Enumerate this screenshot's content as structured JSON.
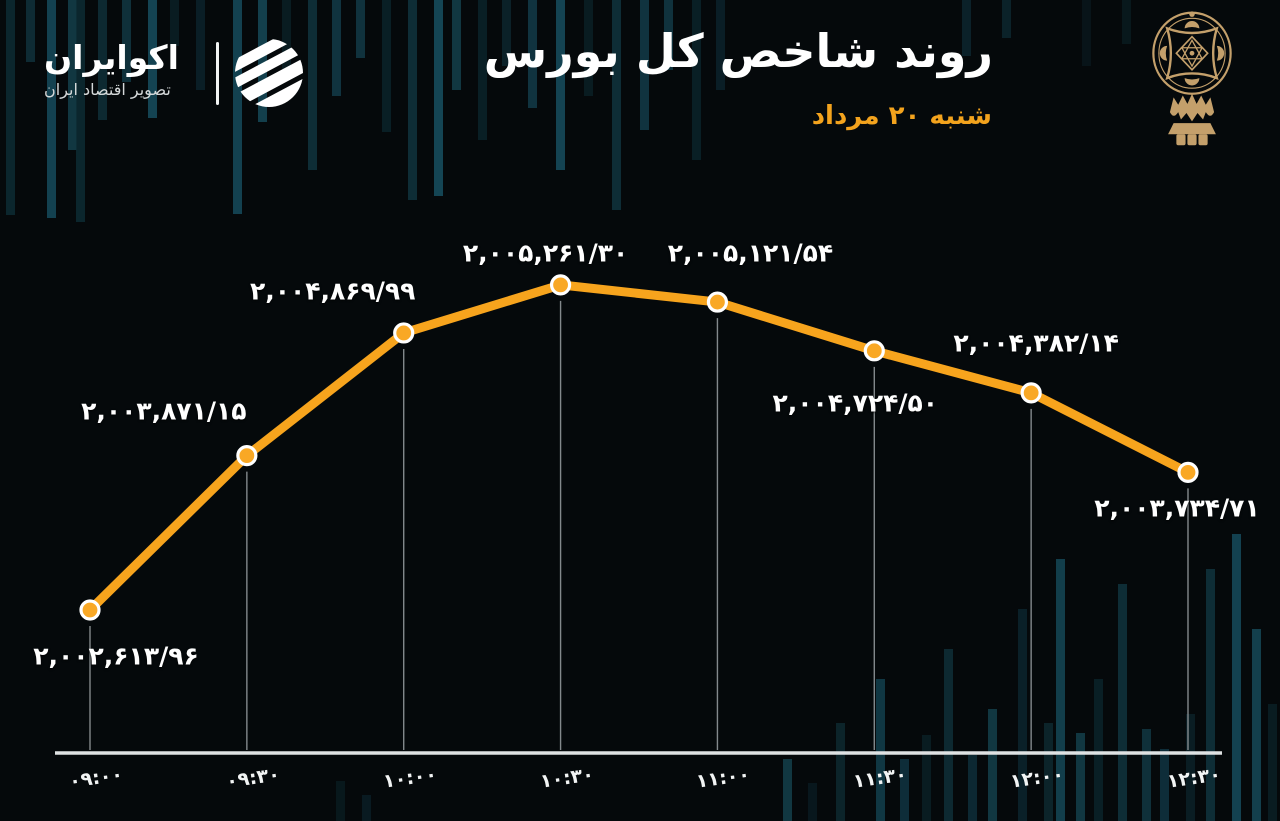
{
  "header": {
    "title": "روند شاخص کل بورس",
    "subtitle": "شنبه ۲۰ مرداد",
    "brand": {
      "name": "اکوایران",
      "tagline": "تصویر اقتصاد ایران"
    }
  },
  "colors": {
    "line": "#F7A41D",
    "point_fill": "#F9A825",
    "point_ring": "#FFFFFF",
    "axis": "#DFE2E3",
    "subtitle": "#F3A31D",
    "emblem_gold": "#C4A06B",
    "background": "#05090B",
    "background_bars": "#16505F"
  },
  "chart_data": {
    "type": "line",
    "title": "روند شاخص کل بورس",
    "xlabel": "",
    "ylabel": "",
    "x": [
      "09:00",
      "09:30",
      "10:00",
      "10:30",
      "11:00",
      "11:30",
      "12:00",
      "12:30"
    ],
    "x_labels_fa": [
      "۰۹:۰۰",
      "۰۹:۳۰",
      "۱۰:۰۰",
      "۱۰:۳۰",
      "۱۱:۰۰",
      "۱۱:۳۰",
      "۱۲:۰۰",
      "۱۲:۳۰"
    ],
    "series": [
      {
        "name": "شاخص کل بورس",
        "values": [
          2002613.96,
          2003871.15,
          2004869.99,
          2005261.3,
          2005121.54,
          2004724.5,
          2004382.14,
          2003734.71
        ]
      }
    ],
    "point_labels": [
      "۲,۰۰۲,۶۱۳/۹۶",
      "۲,۰۰۳,۸۷۱/۱۵",
      "۲,۰۰۴,۸۶۹/۹۹",
      "۲,۰۰۵,۲۶۱/۳۰",
      "۲,۰۰۵,۱۲۱/۵۴",
      "۲,۰۰۴,۷۲۴/۵۰",
      "۲,۰۰۴,۳۸۲/۱۴",
      "۲,۰۰۳,۷۳۴/۷۱"
    ],
    "ylim": [
      2002300,
      2005600
    ],
    "grid": false,
    "legend": false,
    "marker_drop_lines": true
  }
}
